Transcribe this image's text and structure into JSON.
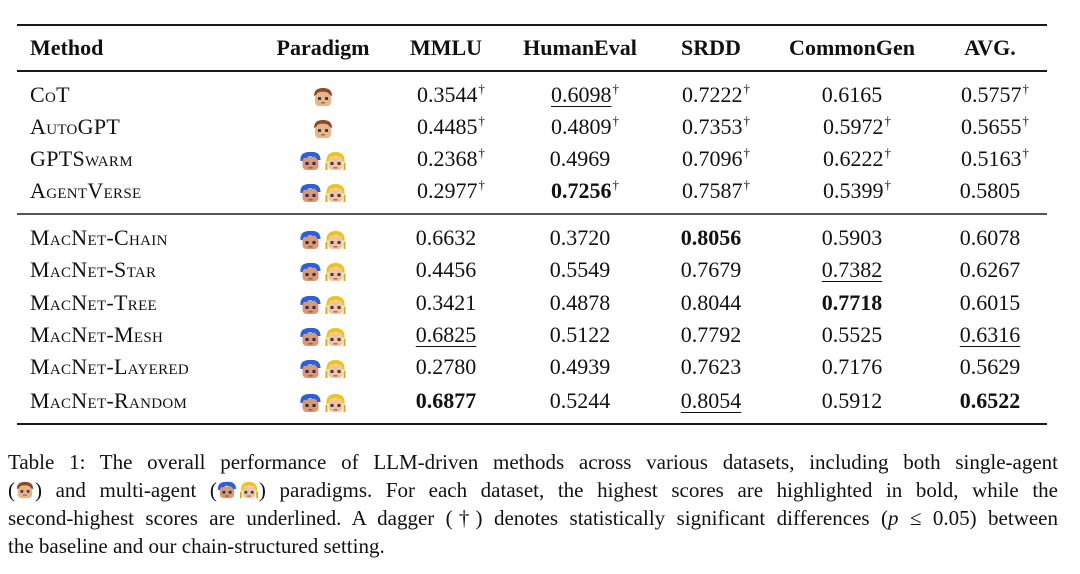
{
  "table": {
    "headers": {
      "method": "Method",
      "paradigm": "Paradigm",
      "mmlu": "MMLU",
      "humaneval": "HumanEval",
      "srdd": "SRDD",
      "commongen": "CommonGen",
      "avg": "AVG."
    },
    "dagger": "†",
    "paradigm_icons": {
      "single": "single-agent-avatar",
      "multi": [
        "multi-agent-avatar-blue",
        "multi-agent-avatar-blonde"
      ]
    },
    "baselines": [
      {
        "method": "CoT",
        "paradigm": "single",
        "mmlu": {
          "v": "0.3544",
          "dag": true,
          "style": ""
        },
        "humaneval": {
          "v": "0.6098",
          "dag": true,
          "style": "underline"
        },
        "srdd": {
          "v": "0.7222",
          "dag": true,
          "style": ""
        },
        "commongen": {
          "v": "0.6165",
          "dag": false,
          "style": ""
        },
        "avg": {
          "v": "0.5757",
          "dag": true,
          "style": ""
        }
      },
      {
        "method": "AutoGPT",
        "paradigm": "single",
        "mmlu": {
          "v": "0.4485",
          "dag": true,
          "style": ""
        },
        "humaneval": {
          "v": "0.4809",
          "dag": true,
          "style": ""
        },
        "srdd": {
          "v": "0.7353",
          "dag": true,
          "style": ""
        },
        "commongen": {
          "v": "0.5972",
          "dag": true,
          "style": ""
        },
        "avg": {
          "v": "0.5655",
          "dag": true,
          "style": ""
        }
      },
      {
        "method": "GPTSwarm",
        "paradigm": "multi",
        "mmlu": {
          "v": "0.2368",
          "dag": true,
          "style": ""
        },
        "humaneval": {
          "v": "0.4969",
          "dag": false,
          "style": ""
        },
        "srdd": {
          "v": "0.7096",
          "dag": true,
          "style": ""
        },
        "commongen": {
          "v": "0.6222",
          "dag": true,
          "style": ""
        },
        "avg": {
          "v": "0.5163",
          "dag": true,
          "style": ""
        }
      },
      {
        "method": "AgentVerse",
        "paradigm": "multi",
        "mmlu": {
          "v": "0.2977",
          "dag": true,
          "style": ""
        },
        "humaneval": {
          "v": "0.7256",
          "dag": true,
          "style": "bold"
        },
        "srdd": {
          "v": "0.7587",
          "dag": true,
          "style": ""
        },
        "commongen": {
          "v": "0.5399",
          "dag": true,
          "style": ""
        },
        "avg": {
          "v": "0.5805",
          "dag": false,
          "style": ""
        }
      }
    ],
    "macnet": [
      {
        "method": "MacNet-Chain",
        "paradigm": "multi",
        "mmlu": {
          "v": "0.6632",
          "dag": false,
          "style": ""
        },
        "humaneval": {
          "v": "0.3720",
          "dag": false,
          "style": ""
        },
        "srdd": {
          "v": "0.8056",
          "dag": false,
          "style": "bold"
        },
        "commongen": {
          "v": "0.5903",
          "dag": false,
          "style": ""
        },
        "avg": {
          "v": "0.6078",
          "dag": false,
          "style": ""
        }
      },
      {
        "method": "MacNet-Star",
        "paradigm": "multi",
        "mmlu": {
          "v": "0.4456",
          "dag": false,
          "style": ""
        },
        "humaneval": {
          "v": "0.5549",
          "dag": false,
          "style": ""
        },
        "srdd": {
          "v": "0.7679",
          "dag": false,
          "style": ""
        },
        "commongen": {
          "v": "0.7382",
          "dag": false,
          "style": "underline"
        },
        "avg": {
          "v": "0.6267",
          "dag": false,
          "style": ""
        }
      },
      {
        "method": "MacNet-Tree",
        "paradigm": "multi",
        "mmlu": {
          "v": "0.3421",
          "dag": false,
          "style": ""
        },
        "humaneval": {
          "v": "0.4878",
          "dag": false,
          "style": ""
        },
        "srdd": {
          "v": "0.8044",
          "dag": false,
          "style": ""
        },
        "commongen": {
          "v": "0.7718",
          "dag": false,
          "style": "bold"
        },
        "avg": {
          "v": "0.6015",
          "dag": false,
          "style": ""
        }
      },
      {
        "method": "MacNet-Mesh",
        "paradigm": "multi",
        "mmlu": {
          "v": "0.6825",
          "dag": false,
          "style": "underline"
        },
        "humaneval": {
          "v": "0.5122",
          "dag": false,
          "style": ""
        },
        "srdd": {
          "v": "0.7792",
          "dag": false,
          "style": ""
        },
        "commongen": {
          "v": "0.5525",
          "dag": false,
          "style": ""
        },
        "avg": {
          "v": "0.6316",
          "dag": false,
          "style": "underline"
        }
      },
      {
        "method": "MacNet-Layered",
        "paradigm": "multi",
        "mmlu": {
          "v": "0.2780",
          "dag": false,
          "style": ""
        },
        "humaneval": {
          "v": "0.4939",
          "dag": false,
          "style": ""
        },
        "srdd": {
          "v": "0.7623",
          "dag": false,
          "style": ""
        },
        "commongen": {
          "v": "0.7176",
          "dag": false,
          "style": ""
        },
        "avg": {
          "v": "0.5629",
          "dag": false,
          "style": ""
        }
      },
      {
        "method": "MacNet-Random",
        "paradigm": "multi",
        "mmlu": {
          "v": "0.6877",
          "dag": false,
          "style": "bold"
        },
        "humaneval": {
          "v": "0.5244",
          "dag": false,
          "style": ""
        },
        "srdd": {
          "v": "0.8054",
          "dag": false,
          "style": "underline"
        },
        "commongen": {
          "v": "0.5912",
          "dag": false,
          "style": ""
        },
        "avg": {
          "v": "0.6522",
          "dag": false,
          "style": "bold"
        }
      }
    ]
  },
  "caption": {
    "line1": "Table 1: The overall performance of LLM-driven methods across various datasets, including both single-agent",
    "line2_a": "(",
    "line2_b": ") and multi-agent (",
    "line2_c": ") paradigms.  For each dataset, the highest scores are highlighted in bold, while the",
    "line3_a": "second-highest scores are underlined. A dagger (†) denotes statistically significant differences (",
    "line3_p": "p",
    "line3_b": " ≤ 0.05) between",
    "line4": "the baseline and our chain-structured setting."
  },
  "colors": {
    "skin": "#e8b48a",
    "brown_hair": "#8a4a22",
    "blue_hair": "#2e5fd6",
    "blonde_hair": "#f2c21a",
    "eyes": "#3a3a5a"
  }
}
